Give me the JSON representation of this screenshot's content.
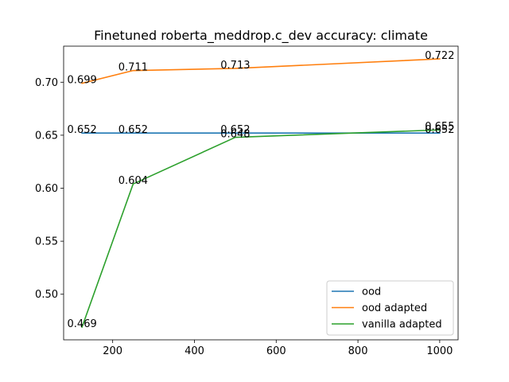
{
  "chart_data": {
    "type": "line",
    "title": "Finetuned roberta_meddrop.c_dev accuracy: climate",
    "xlabel": "",
    "ylabel": "",
    "x": [
      125,
      250,
      500,
      1000
    ],
    "xlim": [
      80,
      1045
    ],
    "ylim": [
      0.457,
      0.734
    ],
    "xticks": [
      200,
      400,
      600,
      800,
      1000
    ],
    "yticks": [
      0.5,
      0.55,
      0.6,
      0.65,
      0.7
    ],
    "ytick_labels": [
      "0.50",
      "0.55",
      "0.60",
      "0.65",
      "0.70"
    ],
    "grid": false,
    "legend_position": "lower-right",
    "series": [
      {
        "name": "ood",
        "color": "#1f77b4",
        "values": [
          0.652,
          0.652,
          0.652,
          0.652
        ],
        "labels": [
          "0.652",
          "0.652",
          "0.652",
          "0.652"
        ]
      },
      {
        "name": "ood adapted",
        "color": "#ff7f0e",
        "values": [
          0.699,
          0.711,
          0.713,
          0.722
        ],
        "labels": [
          "0.699",
          "0.711",
          "0.713",
          "0.722"
        ]
      },
      {
        "name": "vanilla adapted",
        "color": "#2ca02c",
        "values": [
          0.469,
          0.604,
          0.648,
          0.655
        ],
        "labels": [
          "0.469",
          "0.604",
          "0.648",
          "0.655"
        ]
      }
    ]
  }
}
